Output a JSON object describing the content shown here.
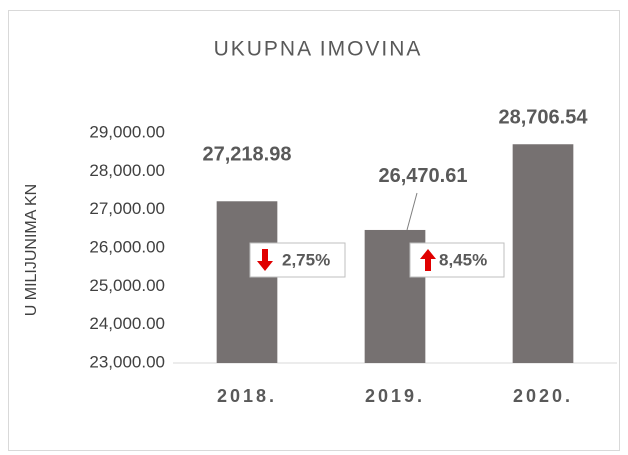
{
  "chart_data": {
    "type": "bar",
    "title": "UKUPNA IMOVINA",
    "y_label": "U MILIJUNIMA KN",
    "categories": [
      "2018.",
      "2019.",
      "2020."
    ],
    "values": [
      27218.98,
      26470.61,
      28706.54
    ],
    "value_labels": [
      "27,218.98",
      "26,470.61",
      "28,706.54"
    ],
    "color": "#767171",
    "ylim": [
      23000,
      29000
    ],
    "yticks": [
      {
        "value": 23000,
        "label": "23,000.00"
      },
      {
        "value": 24000,
        "label": "24,000.00"
      },
      {
        "value": 25000,
        "label": "25,000.00"
      },
      {
        "value": 26000,
        "label": "26,000.00"
      },
      {
        "value": 27000,
        "label": "27,000.00"
      },
      {
        "value": 28000,
        "label": "28,000.00"
      },
      {
        "value": 29000,
        "label": "29,000.00"
      }
    ],
    "grid": false,
    "annotations": [
      "2,75%",
      "8,45%"
    ]
  }
}
